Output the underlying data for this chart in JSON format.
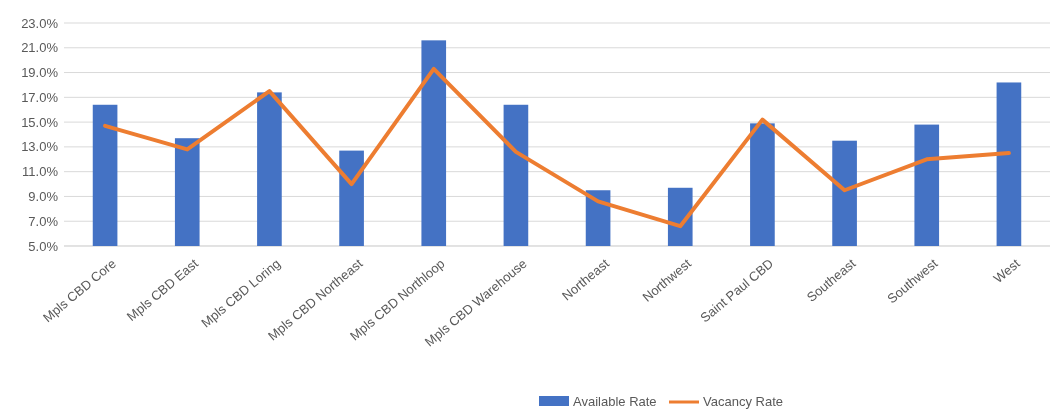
{
  "chart_data": {
    "type": "bar",
    "categories": [
      "Mpls CBD Core",
      "Mpls CBD East",
      "Mpls CBD Loring",
      "Mpls CBD Northeast",
      "Mpls CBD Northloop",
      "Mpls CBD Warehouse",
      "Northeast",
      "Northwest",
      "Saint Paul CBD",
      "Southeast",
      "Southwest",
      "West"
    ],
    "series": [
      {
        "name": "Available Rate",
        "color": "#4472c4",
        "values": [
          16.4,
          13.7,
          17.4,
          12.7,
          21.6,
          16.4,
          9.5,
          9.7,
          14.9,
          13.5,
          14.8,
          18.2
        ]
      },
      {
        "name": "Vacancy Rate",
        "type": "line",
        "color": "#ed7d31",
        "values": [
          14.7,
          12.8,
          17.5,
          10.0,
          19.3,
          12.6,
          8.6,
          6.6,
          15.2,
          9.5,
          12.0,
          12.5
        ]
      }
    ],
    "ylim": [
      5,
      23
    ],
    "yticks": [
      {
        "value": 5,
        "label": "5.0%"
      },
      {
        "value": 7,
        "label": "7.0%"
      },
      {
        "value": 9,
        "label": "9.0%"
      },
      {
        "value": 11,
        "label": "11.0%"
      },
      {
        "value": 13,
        "label": "13.0%"
      },
      {
        "value": 15,
        "label": "15.0%"
      },
      {
        "value": 17,
        "label": "17.0%"
      },
      {
        "value": 19,
        "label": "19.0%"
      },
      {
        "value": 21,
        "label": "21.0%"
      },
      {
        "value": 23,
        "label": "23.0%"
      }
    ],
    "grid": "y",
    "legend": "bottom",
    "marker": "none",
    "line_style": "solid"
  }
}
